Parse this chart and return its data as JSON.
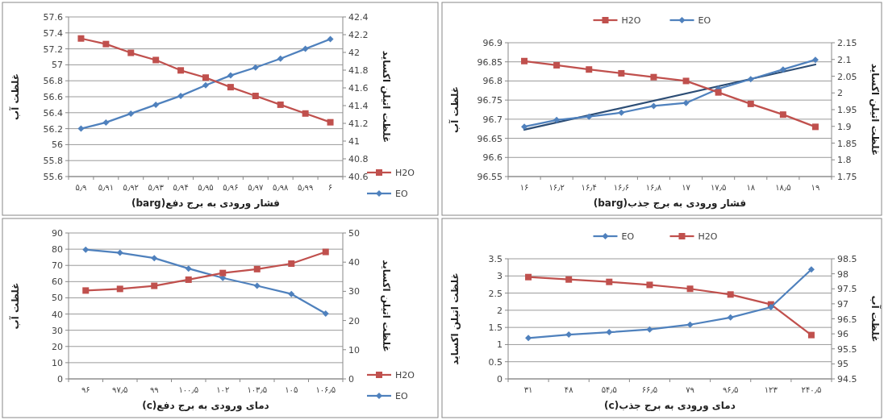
{
  "chart_data": [
    {
      "type": "line",
      "categories": [
        "۵٫۹",
        "۵٫۹۱",
        "۵٫۹۲",
        "۵٫۹۳",
        "۵٫۹۴",
        "۵٫۹۵",
        "۵٫۹۶",
        "۵٫۹۷",
        "۵٫۹۸",
        "۵٫۹۹",
        "۶"
      ],
      "series": [
        {
          "name": "H2O",
          "color": "#c0504d",
          "marker": "square",
          "values": [
            57.33,
            57.26,
            57.15,
            57.06,
            56.93,
            56.84,
            56.72,
            56.61,
            56.5,
            56.39,
            56.28
          ]
        },
        {
          "name": "EO",
          "color": "#4f81bd",
          "marker": "diamond",
          "axis": "y2",
          "values": [
            41.14,
            41.21,
            41.31,
            41.41,
            41.51,
            41.63,
            41.74,
            41.83,
            41.93,
            42.04,
            42.15
          ]
        }
      ],
      "xlabel": "فشار ورودی به برج دفع(barg)",
      "ylabel": "غلظت آب",
      "y2label": "غلظت اتیلن اکساید",
      "ylim": [
        55.6,
        57.6
      ],
      "yticks": [
        55.6,
        55.8,
        56,
        56.2,
        56.4,
        56.6,
        56.8,
        57,
        57.2,
        57.4,
        57.6
      ],
      "y2lim": [
        40.6,
        42.4
      ],
      "y2ticks": [
        40.6,
        40.8,
        41,
        41.2,
        41.4,
        41.6,
        41.8,
        42,
        42.2,
        42.4
      ],
      "grid": "y",
      "legend": "right"
    },
    {
      "type": "line",
      "categories": [
        "۱۶",
        "۱۶٫۲",
        "۱۶٫۴",
        "۱۶٫۶",
        "۱۶٫۸",
        "۱۷",
        "۱۷٫۵",
        "۱۸",
        "۱۸٫۵",
        "۱۹"
      ],
      "series": [
        {
          "name": "H2O",
          "color": "#c0504d",
          "marker": "square",
          "values": [
            96.852,
            96.841,
            96.83,
            96.82,
            96.81,
            96.8,
            96.77,
            96.74,
            96.712,
            96.68
          ]
        },
        {
          "name": "EO",
          "color": "#4f81bd",
          "marker": "diamond",
          "axis": "y2",
          "values": [
            1.899,
            1.919,
            1.929,
            1.941,
            1.961,
            1.97,
            2.012,
            2.041,
            2.07,
            2.099
          ]
        },
        {
          "color": "#2c4d75",
          "marker": "none",
          "axis": "y2",
          "x": [
            "۱۶",
            "۱۹"
          ],
          "values": [
            1.89,
            2.085
          ]
        }
      ],
      "xlabel": "فشار ورودی به برج جذب(barg)",
      "ylabel": "غلظت آب",
      "y2label": "غلظت اتیلن اکساید",
      "ylim": [
        96.55,
        96.9
      ],
      "yticks": [
        96.55,
        96.6,
        96.65,
        96.7,
        96.75,
        96.8,
        96.85,
        96.9
      ],
      "y2lim": [
        1.75,
        2.15
      ],
      "y2ticks": [
        1.75,
        1.8,
        1.85,
        1.9,
        1.95,
        2,
        2.05,
        2.1,
        2.15
      ],
      "grid": "y",
      "legend": "top"
    },
    {
      "type": "line",
      "categories": [
        "۹۶",
        "۹۷٫۵",
        "۹۹",
        "۱۰۰٫۵",
        "۱۰۲",
        "۱۰۳٫۵",
        "۱۰۵",
        "۱۰۶٫۵"
      ],
      "series": [
        {
          "name": "H2O",
          "color": "#c0504d",
          "marker": "square",
          "values": [
            54.5,
            55.5,
            57.4,
            61.2,
            65.3,
            67.7,
            71.1,
            78.3
          ]
        },
        {
          "name": "EO",
          "color": "#4f81bd",
          "marker": "diamond",
          "axis": "y2",
          "values": [
            44.3,
            43.2,
            41.4,
            37.8,
            34.6,
            31.9,
            29.1,
            22.4
          ]
        }
      ],
      "xlabel": "دمای ورودی به برج دفع(c)",
      "ylabel": "غلظت آب",
      "y2label": "غلظت اتیلن اکساید",
      "ylim": [
        0,
        90
      ],
      "yticks": [
        0,
        10,
        20,
        30,
        40,
        50,
        60,
        70,
        80,
        90
      ],
      "y2lim": [
        0,
        50
      ],
      "y2ticks": [
        0,
        10,
        20,
        30,
        40,
        50
      ],
      "grid": "y",
      "legend": "right"
    },
    {
      "type": "line",
      "categories": [
        "۳۱",
        "۴۸",
        "۵۴٫۵",
        "۶۶٫۵",
        "۷۹",
        "۹۶٫۵",
        "۱۲۳",
        "۲۴۰٫۵"
      ],
      "series": [
        {
          "name": "EO",
          "color": "#4f81bd",
          "marker": "diamond",
          "values": [
            1.19,
            1.29,
            1.36,
            1.44,
            1.58,
            1.79,
            2.09,
            3.19
          ]
        },
        {
          "name": "H2O",
          "color": "#c0504d",
          "marker": "square",
          "axis": "y2",
          "values": [
            97.89,
            97.81,
            97.73,
            97.63,
            97.5,
            97.31,
            96.98,
            95.96
          ]
        }
      ],
      "xlabel": "دمای ورودی به برج جذب(c)",
      "ylabel": "غلظت اتیلن اکساید",
      "y2label": "غلظت آب",
      "ylim": [
        0,
        3.5
      ],
      "yticks": [
        0,
        0.5,
        1,
        1.5,
        2,
        2.5,
        3,
        3.5
      ],
      "y2lim": [
        94.5,
        98.5
      ],
      "y2ticks": [
        94.5,
        95,
        95.5,
        96,
        96.5,
        97,
        97.5,
        98,
        98.5
      ],
      "grid": "y",
      "legend": "top"
    }
  ]
}
